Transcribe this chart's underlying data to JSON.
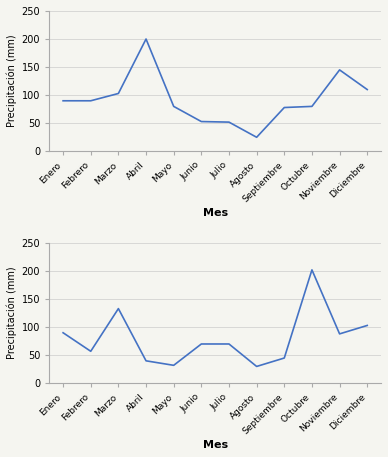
{
  "months": [
    "Enero",
    "Febrero",
    "Marzo",
    "Abril",
    "Mayo",
    "Junio",
    "Julio",
    "Agosto",
    "Septiembre",
    "Octubre",
    "Noviembre",
    "Diciembre"
  ],
  "top_values": [
    90,
    90,
    103,
    200,
    80,
    53,
    52,
    25,
    78,
    80,
    145,
    110
  ],
  "bottom_values": [
    90,
    57,
    133,
    40,
    32,
    70,
    70,
    30,
    45,
    202,
    88,
    103
  ],
  "line_color": "#4472C4",
  "ylabel": "Precipitación (mm)",
  "xlabel": "Mes",
  "ylim": [
    0,
    250
  ],
  "yticks": [
    0,
    50,
    100,
    150,
    200,
    250
  ],
  "bg_color": "#f5f5f0",
  "fig_bg": "#f5f5f0"
}
